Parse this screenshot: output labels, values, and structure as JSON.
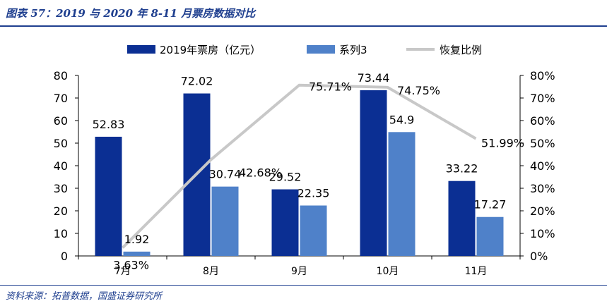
{
  "figure": {
    "title": "图表 57：2019 与 2020 年 8-11 月票房数据对比",
    "source": "资料来源：拓普数据，国盛证券研究所"
  },
  "colors": {
    "series1": "#0b2f93",
    "series2": "#4f81c9",
    "line": "#c8c8c8",
    "rule": "#1f3f8f"
  },
  "chart_data": {
    "type": "bar",
    "title": "",
    "categories": [
      "7月",
      "8月",
      "9月",
      "10月",
      "11月"
    ],
    "series": [
      {
        "name": "2019年票房（亿元）",
        "type": "bar",
        "axis": "left",
        "values": [
          52.83,
          72.02,
          29.52,
          73.44,
          33.22
        ],
        "labels": [
          "52.83",
          "72.02",
          "29.52",
          "73.44",
          "33.22"
        ]
      },
      {
        "name": "系列3",
        "type": "bar",
        "axis": "left",
        "values": [
          1.92,
          30.74,
          22.35,
          54.9,
          17.27
        ],
        "labels": [
          "1.92",
          "30.74",
          "22.35",
          "54.9",
          "17.27"
        ]
      },
      {
        "name": "恢复比例",
        "type": "line",
        "axis": "right",
        "values": [
          3.63,
          42.68,
          75.71,
          74.75,
          51.99
        ],
        "labels": [
          "3.63%",
          "42.68%",
          "75.71%",
          "74.75%",
          "51.99%"
        ]
      }
    ],
    "ylim": [
      0,
      80
    ],
    "yticks": [
      "0",
      "10",
      "20",
      "30",
      "40",
      "50",
      "60",
      "70",
      "80"
    ],
    "y2lim": [
      0,
      80
    ],
    "y2ticks": [
      "0%",
      "10%",
      "20%",
      "30%",
      "40%",
      "50%",
      "60%",
      "70%",
      "80%"
    ],
    "legend_position": "top",
    "grid": false
  }
}
